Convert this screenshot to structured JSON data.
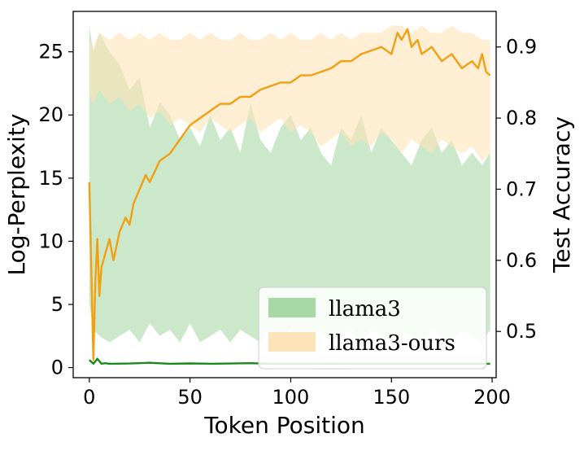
{
  "chart_data": {
    "type": "line",
    "title": "",
    "xlabel": "Token Position",
    "ylabel_left": "Log-Perplexity",
    "ylabel_right": "Test Accuracy",
    "xlim": [
      -8,
      202
    ],
    "ylim_left": [
      -0.8,
      28.2
    ],
    "ylim_right": [
      0.435,
      0.95
    ],
    "xticks": [
      0,
      50,
      100,
      150,
      200
    ],
    "yticks_left": [
      0,
      5,
      10,
      15,
      20,
      25
    ],
    "yticks_right": [
      0.5,
      0.6,
      0.7,
      0.8,
      0.9
    ],
    "grid": false,
    "legend": {
      "placement": "lower-right"
    },
    "colors": {
      "llama3_line": "#1a8a1a",
      "llama3_band": "#a8d8a8",
      "ours_line": "#f0a010",
      "ours_band": "#fde3b8"
    },
    "series": [
      {
        "name": "llama3",
        "axis": "left",
        "kind": "band",
        "x": [
          0,
          2,
          5,
          10,
          15,
          20,
          25,
          30,
          35,
          40,
          45,
          50,
          55,
          60,
          65,
          70,
          75,
          80,
          85,
          90,
          95,
          100,
          105,
          110,
          115,
          120,
          125,
          130,
          135,
          140,
          145,
          150,
          155,
          160,
          165,
          170,
          175,
          180,
          185,
          190,
          195,
          199
        ],
        "upper": [
          27,
          25,
          26.5,
          25,
          24,
          22,
          23,
          19,
          21,
          20,
          18,
          19,
          17.5,
          20,
          18,
          19,
          17,
          21,
          18,
          17,
          19,
          20,
          18,
          19,
          17,
          16,
          19,
          18,
          20,
          17,
          19,
          18,
          17,
          16,
          18,
          19,
          17,
          18,
          16,
          17,
          16,
          17
        ],
        "lower": [
          5,
          3,
          2.5,
          2,
          2.5,
          3,
          2,
          3.5,
          2.5,
          3,
          2,
          3.5,
          2,
          2.5,
          3,
          2,
          3,
          2.5,
          2,
          3,
          2.5,
          3,
          2,
          2.5,
          3,
          2,
          2.5,
          3,
          2,
          3,
          2.5,
          2,
          3,
          2.5,
          2,
          3,
          2.5,
          2,
          3,
          2.5,
          2,
          3
        ]
      },
      {
        "name": "llama3-ours",
        "axis": "right",
        "kind": "band",
        "x": [
          0,
          2,
          5,
          10,
          15,
          20,
          25,
          30,
          35,
          40,
          45,
          50,
          55,
          60,
          65,
          70,
          75,
          80,
          85,
          90,
          95,
          100,
          105,
          110,
          115,
          120,
          125,
          130,
          135,
          140,
          145,
          150,
          155,
          160,
          165,
          170,
          175,
          180,
          185,
          190,
          195,
          199
        ],
        "upper": [
          0.91,
          0.9,
          0.92,
          0.91,
          0.92,
          0.91,
          0.92,
          0.91,
          0.92,
          0.91,
          0.91,
          0.92,
          0.91,
          0.92,
          0.91,
          0.91,
          0.92,
          0.91,
          0.91,
          0.92,
          0.91,
          0.92,
          0.91,
          0.91,
          0.92,
          0.91,
          0.92,
          0.91,
          0.92,
          0.92,
          0.92,
          0.93,
          0.93,
          0.92,
          0.93,
          0.92,
          0.92,
          0.93,
          0.92,
          0.92,
          0.91,
          0.91
        ],
        "lower": [
          0.83,
          0.82,
          0.84,
          0.82,
          0.83,
          0.81,
          0.82,
          0.8,
          0.81,
          0.79,
          0.8,
          0.79,
          0.78,
          0.8,
          0.79,
          0.78,
          0.79,
          0.8,
          0.78,
          0.79,
          0.8,
          0.78,
          0.79,
          0.78,
          0.76,
          0.77,
          0.78,
          0.76,
          0.77,
          0.76,
          0.78,
          0.77,
          0.75,
          0.77,
          0.76,
          0.75,
          0.77,
          0.76,
          0.75,
          0.76,
          0.74,
          0.75
        ]
      },
      {
        "name": "llama3",
        "axis": "left",
        "kind": "line",
        "x": [
          0,
          2,
          4,
          6,
          8,
          10,
          20,
          30,
          40,
          50,
          60,
          70,
          80,
          90,
          100,
          110,
          120,
          130,
          140,
          150,
          160,
          170,
          180,
          190,
          199
        ],
        "y": [
          0.6,
          0.3,
          0.7,
          0.3,
          0.35,
          0.3,
          0.32,
          0.38,
          0.3,
          0.33,
          0.3,
          0.32,
          0.35,
          0.3,
          0.3,
          0.3,
          0.31,
          0.3,
          0.3,
          0.3,
          0.3,
          0.3,
          0.3,
          0.3,
          0.3
        ]
      },
      {
        "name": "llama3-ours",
        "axis": "right",
        "kind": "line",
        "x": [
          0,
          2,
          3,
          4,
          5,
          6,
          8,
          10,
          12,
          15,
          18,
          20,
          22,
          25,
          28,
          30,
          35,
          40,
          45,
          50,
          55,
          60,
          65,
          70,
          75,
          80,
          85,
          90,
          95,
          100,
          105,
          110,
          115,
          120,
          125,
          130,
          135,
          140,
          145,
          150,
          153,
          155,
          158,
          160,
          163,
          165,
          170,
          175,
          180,
          185,
          190,
          193,
          195,
          197,
          199
        ],
        "y": [
          0.71,
          0.46,
          0.57,
          0.63,
          0.55,
          0.59,
          0.61,
          0.63,
          0.6,
          0.64,
          0.66,
          0.65,
          0.68,
          0.7,
          0.72,
          0.71,
          0.74,
          0.75,
          0.77,
          0.79,
          0.8,
          0.81,
          0.82,
          0.82,
          0.83,
          0.83,
          0.84,
          0.845,
          0.85,
          0.85,
          0.86,
          0.86,
          0.865,
          0.87,
          0.88,
          0.88,
          0.89,
          0.895,
          0.9,
          0.89,
          0.92,
          0.91,
          0.925,
          0.9,
          0.91,
          0.89,
          0.9,
          0.88,
          0.89,
          0.87,
          0.88,
          0.87,
          0.89,
          0.865,
          0.86
        ]
      }
    ]
  }
}
